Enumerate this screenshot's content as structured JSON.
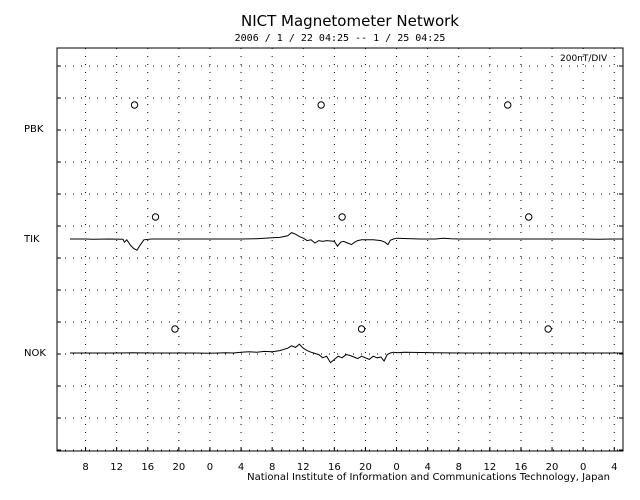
{
  "chart_data": {
    "type": "line",
    "title": "NICT Magnetometer Network",
    "subtitle": "2006 /  1 / 22   04:25 --   1 / 25   04:25",
    "scale_label": "200nT/DIV",
    "credit": "National Institute of Information and Communications Technology, Japan",
    "x_tick_labels": [
      "8",
      "12",
      "16",
      "20",
      "0",
      "4",
      "8",
      "12",
      "16",
      "20",
      "0",
      "4",
      "8",
      "12",
      "16",
      "20",
      "0",
      "4"
    ],
    "x_hours_range": [
      0,
      72
    ],
    "grid": true,
    "colors": {
      "trace": "#000000",
      "grid": "#000000",
      "background": "#ffffff"
    },
    "stations": [
      {
        "name": "PBK",
        "midnight_markers_hours": [
          8.3,
          32.3,
          56.3
        ],
        "series": []
      },
      {
        "name": "TIK",
        "midnight_markers_hours": [
          11.0,
          35.0,
          59.0
        ],
        "series": [
          [
            0,
            0
          ],
          [
            2,
            0
          ],
          [
            3,
            -2
          ],
          [
            5,
            0
          ],
          [
            6.8,
            -2
          ],
          [
            7,
            -20
          ],
          [
            7.3,
            -5
          ],
          [
            7.8,
            -40
          ],
          [
            8.2,
            -60
          ],
          [
            8.6,
            -70
          ],
          [
            9,
            -40
          ],
          [
            9.5,
            -5
          ],
          [
            10.5,
            0
          ],
          [
            14,
            0
          ],
          [
            18,
            0
          ],
          [
            22,
            0
          ],
          [
            24,
            2
          ],
          [
            25,
            5
          ],
          [
            26,
            8
          ],
          [
            27,
            10
          ],
          [
            28,
            20
          ],
          [
            28.5,
            40
          ],
          [
            29,
            30
          ],
          [
            29.5,
            15
          ],
          [
            30,
            5
          ],
          [
            30.5,
            -10
          ],
          [
            31,
            -5
          ],
          [
            31.5,
            -25
          ],
          [
            32,
            -10
          ],
          [
            32.5,
            -15
          ],
          [
            33,
            -10
          ],
          [
            34,
            -15
          ],
          [
            34.4,
            -45
          ],
          [
            34.8,
            -20
          ],
          [
            35.2,
            -15
          ],
          [
            35.7,
            -25
          ],
          [
            36.2,
            -35
          ],
          [
            36.6,
            -20
          ],
          [
            37,
            -10
          ],
          [
            37.5,
            -5
          ],
          [
            38,
            -5
          ],
          [
            39,
            -5
          ],
          [
            40,
            -10
          ],
          [
            40.5,
            -20
          ],
          [
            40.9,
            -35
          ],
          [
            41.2,
            -8
          ],
          [
            41.6,
            0
          ],
          [
            42,
            5
          ],
          [
            43,
            3
          ],
          [
            45,
            0
          ],
          [
            47,
            0
          ],
          [
            48,
            5
          ],
          [
            49,
            2
          ],
          [
            50,
            0
          ],
          [
            54,
            0
          ],
          [
            58,
            0
          ],
          [
            62,
            0
          ],
          [
            66,
            0
          ],
          [
            68,
            -2
          ],
          [
            70,
            0
          ],
          [
            72,
            0
          ]
        ]
      },
      {
        "name": "NOK",
        "midnight_markers_hours": [
          13.5,
          37.5,
          61.5
        ],
        "series": [
          [
            0,
            0
          ],
          [
            3,
            0
          ],
          [
            6,
            0
          ],
          [
            8,
            1
          ],
          [
            10,
            0
          ],
          [
            14,
            0
          ],
          [
            16,
            0
          ],
          [
            18,
            -2
          ],
          [
            20,
            2
          ],
          [
            21,
            0
          ],
          [
            22,
            5
          ],
          [
            23,
            8
          ],
          [
            24,
            5
          ],
          [
            25,
            10
          ],
          [
            26,
            8
          ],
          [
            27,
            15
          ],
          [
            28,
            30
          ],
          [
            28.5,
            45
          ],
          [
            29,
            35
          ],
          [
            29.5,
            55
          ],
          [
            30,
            30
          ],
          [
            30.5,
            15
          ],
          [
            31,
            5
          ],
          [
            32,
            -10
          ],
          [
            32.5,
            -30
          ],
          [
            33,
            -20
          ],
          [
            33.5,
            -60
          ],
          [
            34,
            -40
          ],
          [
            34.5,
            -20
          ],
          [
            35,
            -30
          ],
          [
            35.5,
            -10
          ],
          [
            36,
            -15
          ],
          [
            36.5,
            -25
          ],
          [
            37,
            -35
          ],
          [
            37.5,
            -20
          ],
          [
            38,
            -30
          ],
          [
            38.5,
            -40
          ],
          [
            39,
            -20
          ],
          [
            39.5,
            -30
          ],
          [
            40,
            -25
          ],
          [
            40.4,
            -50
          ],
          [
            40.8,
            -10
          ],
          [
            41.2,
            0
          ],
          [
            41.6,
            5
          ],
          [
            42,
            2
          ],
          [
            43,
            5
          ],
          [
            45,
            3
          ],
          [
            47,
            2
          ],
          [
            50,
            0
          ],
          [
            54,
            0
          ],
          [
            58,
            0
          ],
          [
            62,
            0
          ],
          [
            66,
            0
          ],
          [
            70,
            0
          ],
          [
            72,
            0
          ]
        ]
      }
    ]
  }
}
